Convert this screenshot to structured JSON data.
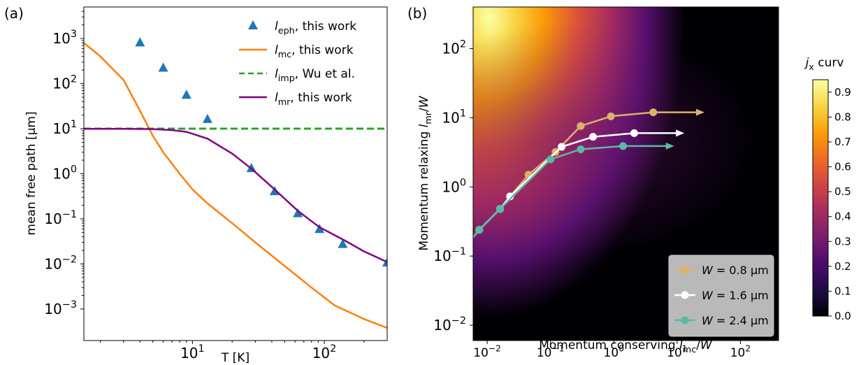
{
  "chart_data": [
    {
      "panel_label": "(a)",
      "type": "line",
      "xlabel": "T [K]",
      "ylabel": "mean free path [μm]",
      "xscale": "log",
      "yscale": "log",
      "xlim": [
        1.5,
        300
      ],
      "ylim": [
        0.0002,
        5000
      ],
      "xtick_labels": [
        "10^1",
        "10^2"
      ],
      "ytick_labels": [
        "10^-3",
        "10^-2",
        "10^-1",
        "10^0",
        "10^1",
        "10^2",
        "10^3"
      ],
      "legend_position": "upper right",
      "series": [
        {
          "name": "l_eph, this work",
          "style": "triangle-markers",
          "color": "#1f77b4",
          "x": [
            4,
            6,
            9,
            13,
            28,
            42,
            63,
            92,
            138,
            300
          ],
          "y": [
            800,
            220,
            55,
            16,
            1.3,
            0.4,
            0.13,
            0.058,
            0.027,
            0.0105
          ]
        },
        {
          "name": "l_mc, this work",
          "style": "solid",
          "color": "#ff7f0e",
          "x": [
            1.5,
            2,
            3,
            4,
            5,
            6,
            8,
            10,
            13,
            20,
            30,
            50,
            80,
            120,
            200,
            300
          ],
          "y": [
            800,
            400,
            120,
            25,
            7,
            3,
            1,
            0.45,
            0.22,
            0.08,
            0.03,
            0.009,
            0.003,
            0.0012,
            0.0006,
            0.00038
          ]
        },
        {
          "name": "l_imp, Wu et al.",
          "style": "dashed",
          "color": "#2ca02c",
          "x": [
            1.5,
            300
          ],
          "y": [
            10,
            10
          ]
        },
        {
          "name": "l_mr, this work",
          "style": "solid",
          "color": "#800080",
          "x": [
            1.5,
            3,
            5,
            7,
            9,
            13,
            20,
            28,
            42,
            63,
            92,
            138,
            200,
            300
          ],
          "y": [
            9.9,
            9.9,
            9.8,
            9.3,
            8.5,
            6,
            2.8,
            1.3,
            0.45,
            0.15,
            0.065,
            0.035,
            0.019,
            0.011
          ]
        }
      ]
    },
    {
      "panel_label": "(b)",
      "type": "heatmap",
      "xlabel": "Momentum conserving l_mc/W",
      "ylabel": "Momentum relaxing l_mr/W",
      "xscale": "log",
      "yscale": "log",
      "xlim": [
        0.006,
        400
      ],
      "ylim": [
        0.006,
        400
      ],
      "xtick_labels": [
        "10^-2",
        "10^-1",
        "10^0",
        "10^1",
        "10^2"
      ],
      "ytick_labels": [
        "10^-2",
        "10^-1",
        "10^0",
        "10^1",
        "10^2"
      ],
      "colorbar": {
        "label": "j_x curv",
        "colormap": "inferno",
        "range": [
          0.0,
          0.95
        ],
        "ticks": [
          "0.0",
          "0.1",
          "0.2",
          "0.3",
          "0.4",
          "0.5",
          "0.6",
          "0.7",
          "0.8",
          "0.9"
        ]
      },
      "legend_position": "lower right",
      "series": [
        {
          "name": "W = 0.8 μm",
          "color": "#dbb26b",
          "x": [
            0.0075,
            0.016,
            0.023,
            0.045,
            0.12,
            0.3,
            0.9,
            4.2
          ],
          "y": [
            0.24,
            0.48,
            0.73,
            1.5,
            3.2,
            7.6,
            10.5,
            12
          ],
          "arrow_end_x": 27
        },
        {
          "name": "W = 1.6 μm",
          "color": "#ffffff",
          "x": [
            0.0075,
            0.016,
            0.023,
            0.15,
            0.47,
            2.1
          ],
          "y": [
            0.24,
            0.48,
            0.73,
            3.8,
            5.3,
            6
          ],
          "arrow_end_x": 13
        },
        {
          "name": "W = 2.4 μm",
          "color": "#5cb8a8",
          "x": [
            0.0075,
            0.016,
            0.1,
            0.3,
            1.4
          ],
          "y": [
            0.24,
            0.48,
            2.5,
            3.5,
            3.9
          ],
          "arrow_end_x": 9
        }
      ]
    }
  ]
}
